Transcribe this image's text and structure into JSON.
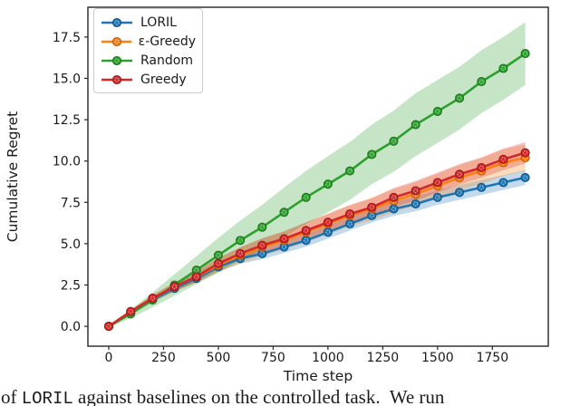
{
  "chart_data": {
    "type": "line",
    "title": "",
    "xlabel": "Time step",
    "ylabel": "Cumulative Regret",
    "grid": false,
    "legend_position": "upper left",
    "xlim": [
      -95,
      2005
    ],
    "ylim": [
      -1.2,
      19.3
    ],
    "x_ticks": [
      0,
      250,
      500,
      750,
      1000,
      1250,
      1500,
      1750
    ],
    "y_ticks": [
      "0.0",
      "2.5",
      "5.0",
      "7.5",
      "10.0",
      "12.5",
      "15.0",
      "17.5"
    ],
    "x": [
      0,
      100,
      200,
      300,
      400,
      500,
      600,
      700,
      800,
      900,
      1000,
      1100,
      1200,
      1300,
      1400,
      1500,
      1600,
      1700,
      1800,
      1900
    ],
    "series": [
      {
        "name": "LORIL",
        "color": "#1f77b4",
        "values": [
          0.0,
          0.8,
          1.6,
          2.3,
          2.9,
          3.6,
          4.1,
          4.4,
          4.8,
          5.2,
          5.7,
          6.2,
          6.7,
          7.1,
          7.4,
          7.8,
          8.1,
          8.4,
          8.7,
          9.0
        ],
        "band_delta": [
          0.05,
          0.1,
          0.15,
          0.2,
          0.25,
          0.3,
          0.32,
          0.34,
          0.36,
          0.38,
          0.4,
          0.4,
          0.42,
          0.42,
          0.44,
          0.44,
          0.45,
          0.45,
          0.45,
          0.45
        ]
      },
      {
        "name": "ε-Greedy",
        "color": "#ff7f0e",
        "values": [
          0.0,
          0.85,
          1.7,
          2.4,
          3.0,
          3.7,
          4.3,
          4.8,
          5.2,
          5.7,
          6.2,
          6.7,
          7.1,
          7.6,
          8.0,
          8.5,
          9.0,
          9.4,
          9.9,
          10.2
        ],
        "band_delta": [
          0.05,
          0.12,
          0.2,
          0.28,
          0.35,
          0.42,
          0.48,
          0.52,
          0.56,
          0.6,
          0.62,
          0.65,
          0.68,
          0.7,
          0.72,
          0.74,
          0.76,
          0.78,
          0.8,
          0.8
        ]
      },
      {
        "name": "Random",
        "color": "#2ca02c",
        "values": [
          0.0,
          0.75,
          1.6,
          2.5,
          3.4,
          4.3,
          5.2,
          6.0,
          6.9,
          7.8,
          8.6,
          9.4,
          10.4,
          11.2,
          12.2,
          13.0,
          13.8,
          14.8,
          15.6,
          16.5
        ],
        "band_delta": [
          0.08,
          0.25,
          0.45,
          0.65,
          0.85,
          1.05,
          1.2,
          1.35,
          1.5,
          1.6,
          1.7,
          1.75,
          1.8,
          1.85,
          1.9,
          1.9,
          1.9,
          1.9,
          1.9,
          1.9
        ]
      },
      {
        "name": "Greedy",
        "color": "#d62728",
        "values": [
          0.0,
          0.9,
          1.7,
          2.4,
          3.0,
          3.8,
          4.4,
          4.9,
          5.3,
          5.8,
          6.3,
          6.8,
          7.2,
          7.8,
          8.2,
          8.7,
          9.2,
          9.6,
          10.1,
          10.5
        ],
        "band_delta": [
          0.05,
          0.1,
          0.18,
          0.25,
          0.3,
          0.35,
          0.38,
          0.42,
          0.45,
          0.48,
          0.5,
          0.52,
          0.55,
          0.57,
          0.6,
          0.6,
          0.62,
          0.62,
          0.65,
          0.65
        ]
      }
    ]
  },
  "legend": {
    "items": [
      {
        "label": "LORIL",
        "color": "#1f77b4"
      },
      {
        "label": "ε-Greedy",
        "color": "#ff7f0e"
      },
      {
        "label": "Random",
        "color": "#2ca02c"
      },
      {
        "label": "Greedy",
        "color": "#d62728"
      }
    ]
  },
  "caption": {
    "prefix": "of ",
    "code": "LORIL",
    "suffix": " against baselines on the controlled task.  We run"
  },
  "colors": {
    "spine": "#262626",
    "tick_label": "#1a1a1a",
    "band_opacity": "0.27"
  }
}
